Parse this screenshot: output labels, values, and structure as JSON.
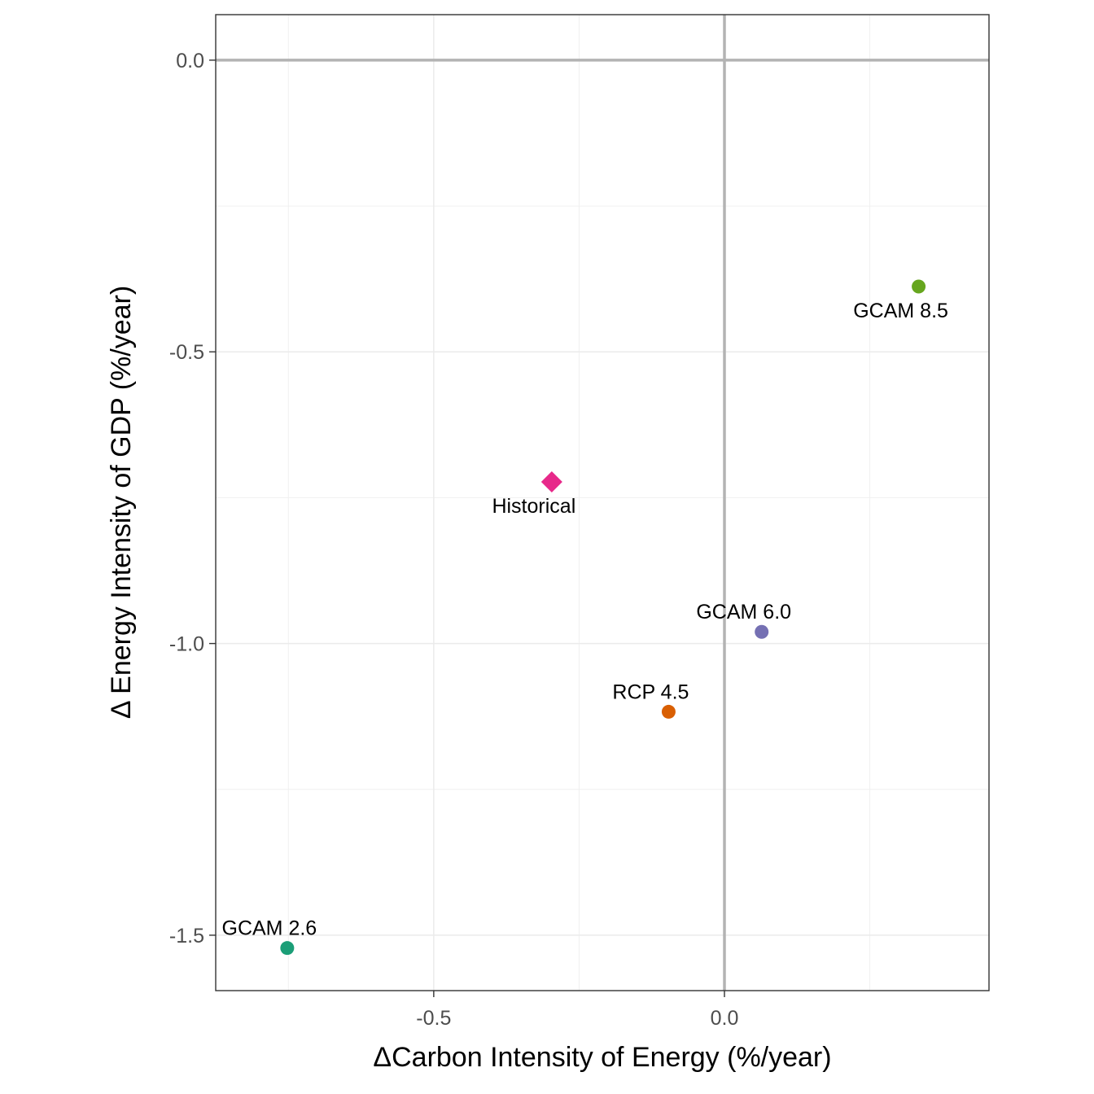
{
  "chart_data": {
    "type": "scatter",
    "title": "",
    "xlabel": "ΔCarbon Intensity of Energy (%/year)",
    "ylabel": "Δ Energy Intensity of GDP (%/year)",
    "xlim": [
      -0.875,
      0.455
    ],
    "ylim": [
      -1.595,
      0.078
    ],
    "x_ticks": [
      -0.5,
      0.0
    ],
    "x_tick_labels": [
      "-0.5",
      "0.0"
    ],
    "y_ticks": [
      0.0,
      -0.5,
      -1.0,
      -1.5
    ],
    "y_tick_labels": [
      "0.0",
      "-0.5",
      "-1.0",
      "-1.5"
    ],
    "x_minor_gridlines": [
      -0.75,
      -0.25,
      0.25
    ],
    "y_minor_gridlines": [
      -0.25,
      -0.75,
      -1.25
    ],
    "reference_lines": {
      "x": 0.0,
      "y": 0.0
    },
    "grid": true,
    "legend": "none",
    "points": [
      {
        "label": "Historical",
        "x": -0.297,
        "y": -0.723,
        "shape": "diamond",
        "color": "#e7298a",
        "label_pos": "below"
      },
      {
        "label": "GCAM 8.5",
        "x": 0.334,
        "y": -0.388,
        "shape": "circle",
        "color": "#66a61e",
        "label_pos": "below"
      },
      {
        "label": "GCAM 6.0",
        "x": 0.064,
        "y": -0.98,
        "shape": "circle",
        "color": "#7570b3",
        "label_pos": "above"
      },
      {
        "label": "RCP 4.5",
        "x": -0.096,
        "y": -1.117,
        "shape": "circle",
        "color": "#d95f02",
        "label_pos": "above"
      },
      {
        "label": "GCAM 2.6",
        "x": -0.752,
        "y": -1.522,
        "shape": "circle",
        "color": "#1b9e77",
        "label_pos": "above"
      }
    ]
  }
}
